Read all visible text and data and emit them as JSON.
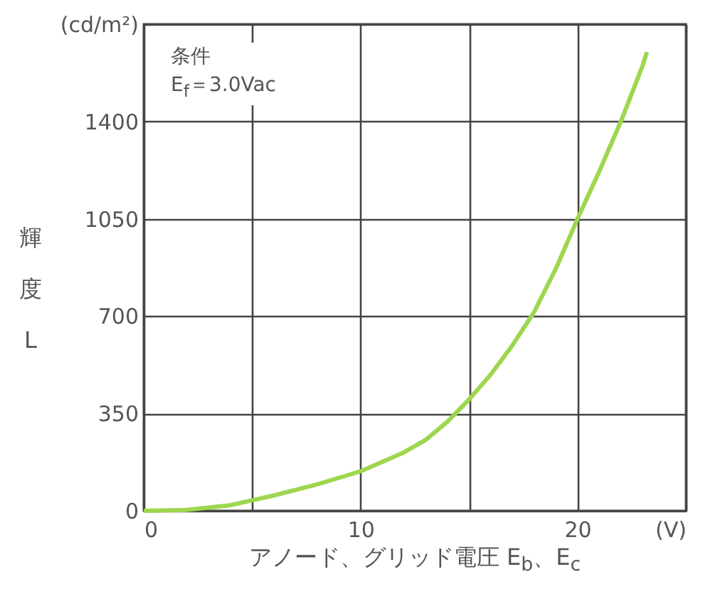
{
  "chart_data": {
    "type": "line",
    "xlabel": "アノード、グリッド電圧 E$_{b}$、E$_{c}$",
    "ylabel": "輝度L",
    "annotations": [
      "条件",
      "E$_{f}$＝3.0Vac"
    ],
    "x": [
      0,
      2,
      4,
      6,
      8,
      10,
      12,
      13,
      14,
      15,
      16,
      17,
      18,
      19,
      20,
      21,
      22,
      23,
      23.2
    ],
    "series": [
      {
        "color": "#9ed64e",
        "values": [
          0,
          3,
          20,
          55,
          95,
          142,
          210,
          255,
          320,
          400,
          490,
          595,
          715,
          870,
          1050,
          1220,
          1400,
          1600,
          1650
        ]
      }
    ],
    "xlim": [
      0,
      25
    ],
    "xticks": [
      0,
      {
        "value": 5,
        "label": null
      },
      10,
      {
        "value": 15,
        "label": null
      },
      20,
      {
        "value": 25,
        "label": "(V)"
      }
    ],
    "ylim": [
      0,
      1750
    ],
    "yticks": [
      0,
      350,
      700,
      1050,
      1400,
      {
        "value": 1750,
        "label": "(cd/m²)"
      }
    ],
    "grid": true,
    "marker": "none",
    "line_style": "solid"
  }
}
